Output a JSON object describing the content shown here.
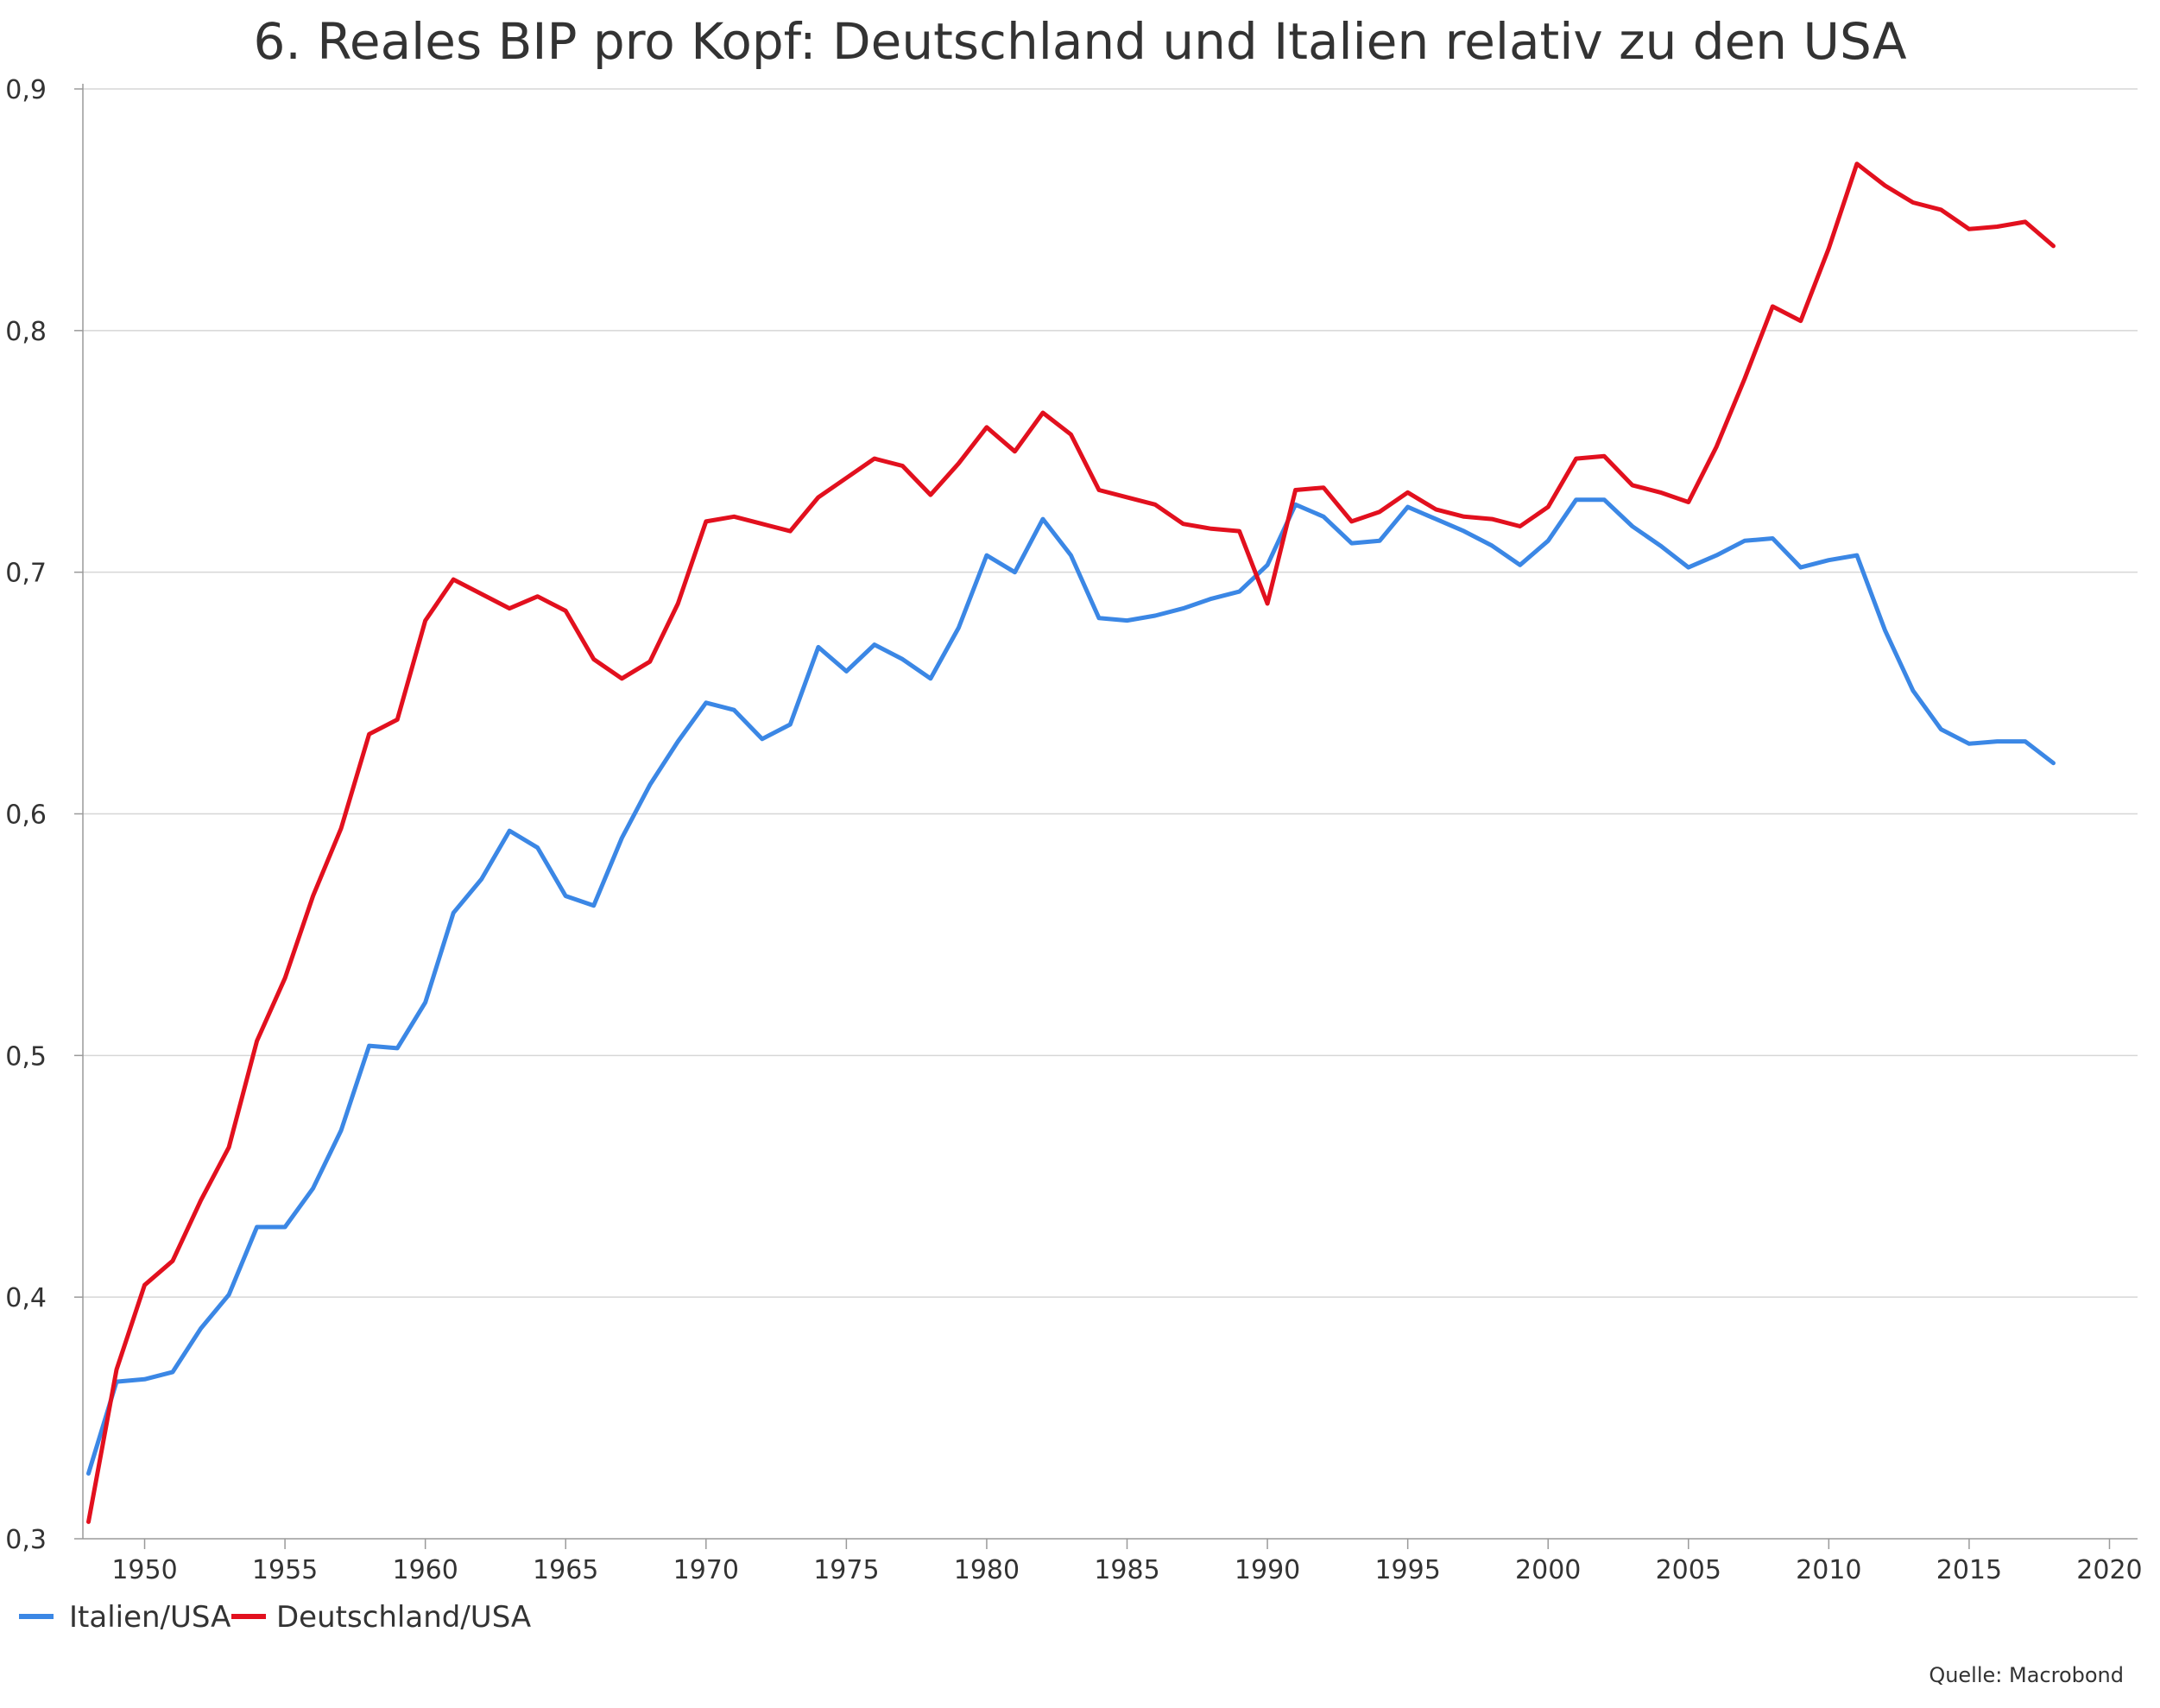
{
  "chart_data": {
    "type": "line",
    "title": "6. Reales BIP pro Kopf: Deutschland und Italien relativ zu den USA",
    "source": "Quelle: Macrobond",
    "xlabel": "",
    "ylabel": "",
    "xlim": [
      1947.8,
      2021
    ],
    "ylim": [
      0.3,
      0.9
    ],
    "x_ticks": [
      "1950",
      "1955",
      "1960",
      "1965",
      "1970",
      "1975",
      "1980",
      "1985",
      "1990",
      "1995",
      "2000",
      "2005",
      "2010",
      "2015",
      "2020"
    ],
    "y_ticks": [
      "0,3",
      "0,4",
      "0,5",
      "0,6",
      "0,7",
      "0,8",
      "0,9"
    ],
    "grid": true,
    "legend_position": "bottom-left",
    "x": [
      1948,
      1949,
      1950,
      1951,
      1952,
      1953,
      1954,
      1955,
      1956,
      1957,
      1958,
      1959,
      1960,
      1961,
      1962,
      1963,
      1964,
      1965,
      1966,
      1967,
      1968,
      1969,
      1970,
      1971,
      1972,
      1973,
      1974,
      1975,
      1976,
      1977,
      1978,
      1979,
      1980,
      1981,
      1982,
      1983,
      1984,
      1985,
      1986,
      1987,
      1988,
      1989,
      1990,
      1991,
      1992,
      1993,
      1994,
      1995,
      1996,
      1997,
      1998,
      1999,
      2000,
      2001,
      2002,
      2003,
      2004,
      2005,
      2006,
      2007,
      2008,
      2009,
      2010,
      2011,
      2012,
      2013,
      2014,
      2015,
      2016,
      2017,
      2018
    ],
    "series": [
      {
        "name": "Italien/USA",
        "color": "#3b87e5",
        "values": [
          0.327,
          0.365,
          0.366,
          0.369,
          0.387,
          0.401,
          0.429,
          0.429,
          0.445,
          0.469,
          0.504,
          0.503,
          0.522,
          0.559,
          0.573,
          0.593,
          0.586,
          0.566,
          0.562,
          0.59,
          0.612,
          0.63,
          0.646,
          0.643,
          0.631,
          0.637,
          0.669,
          0.659,
          0.67,
          0.664,
          0.656,
          0.677,
          0.707,
          0.7,
          0.722,
          0.707,
          0.681,
          0.68,
          0.682,
          0.685,
          0.689,
          0.692,
          0.703,
          0.728,
          0.723,
          0.712,
          0.713,
          0.727,
          0.722,
          0.717,
          0.711,
          0.703,
          0.713,
          0.73,
          0.73,
          0.719,
          0.711,
          0.702,
          0.707,
          0.713,
          0.714,
          0.702,
          0.705,
          0.707,
          0.676,
          0.651,
          0.635,
          0.629,
          0.63,
          0.63,
          0.621
        ]
      },
      {
        "name": "Deutschland/USA",
        "color": "#e2101e",
        "values": [
          0.307,
          0.37,
          0.405,
          0.415,
          0.44,
          0.462,
          0.506,
          0.532,
          0.566,
          0.594,
          0.633,
          0.639,
          0.68,
          0.697,
          0.691,
          0.685,
          0.69,
          0.684,
          0.664,
          0.656,
          0.663,
          0.687,
          0.721,
          0.723,
          0.72,
          0.717,
          0.731,
          0.739,
          0.747,
          0.744,
          0.732,
          0.745,
          0.76,
          0.75,
          0.766,
          0.757,
          0.734,
          0.731,
          0.728,
          0.72,
          0.718,
          0.717,
          0.687,
          0.734,
          0.735,
          0.721,
          0.725,
          0.733,
          0.726,
          0.723,
          0.722,
          0.719,
          0.727,
          0.747,
          0.748,
          0.736,
          0.733,
          0.729,
          0.752,
          0.78,
          0.81,
          0.804,
          0.834,
          0.869,
          0.86,
          0.853,
          0.85,
          0.842,
          0.843,
          0.845,
          0.835
        ]
      }
    ]
  }
}
